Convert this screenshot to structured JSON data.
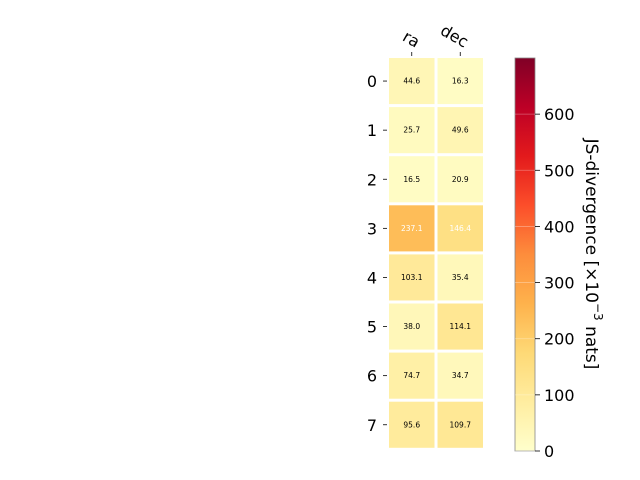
{
  "chart_data": {
    "type": "heatmap",
    "columns": [
      "ra",
      "dec"
    ],
    "rows": [
      "0",
      "1",
      "2",
      "3",
      "4",
      "5",
      "6",
      "7"
    ],
    "values": [
      [
        44.6,
        16.3
      ],
      [
        25.7,
        49.6
      ],
      [
        16.5,
        20.9
      ],
      [
        237.1,
        146.4
      ],
      [
        103.1,
        35.4
      ],
      [
        38.0,
        114.1
      ],
      [
        74.7,
        34.7
      ],
      [
        95.6,
        109.7
      ]
    ],
    "value_labels": [
      [
        "44.6",
        "16.3"
      ],
      [
        "25.7",
        "49.6"
      ],
      [
        "16.5",
        "20.9"
      ],
      [
        "237.1",
        "146.4"
      ],
      [
        "103.1",
        "35.4"
      ],
      [
        "38.0",
        "114.1"
      ],
      [
        "74.7",
        "34.7"
      ],
      [
        "95.6",
        "109.7"
      ]
    ],
    "colormap": "YlOrRd",
    "colorbar": {
      "label": "JS-divergence [×10",
      "label_exponent": "−3",
      "label_suffix": " nats]",
      "range": [
        0,
        700
      ],
      "ticks": [
        "0",
        "100",
        "200",
        "300",
        "400",
        "500",
        "600"
      ]
    },
    "grid": false,
    "legend": "colorbar-right"
  }
}
